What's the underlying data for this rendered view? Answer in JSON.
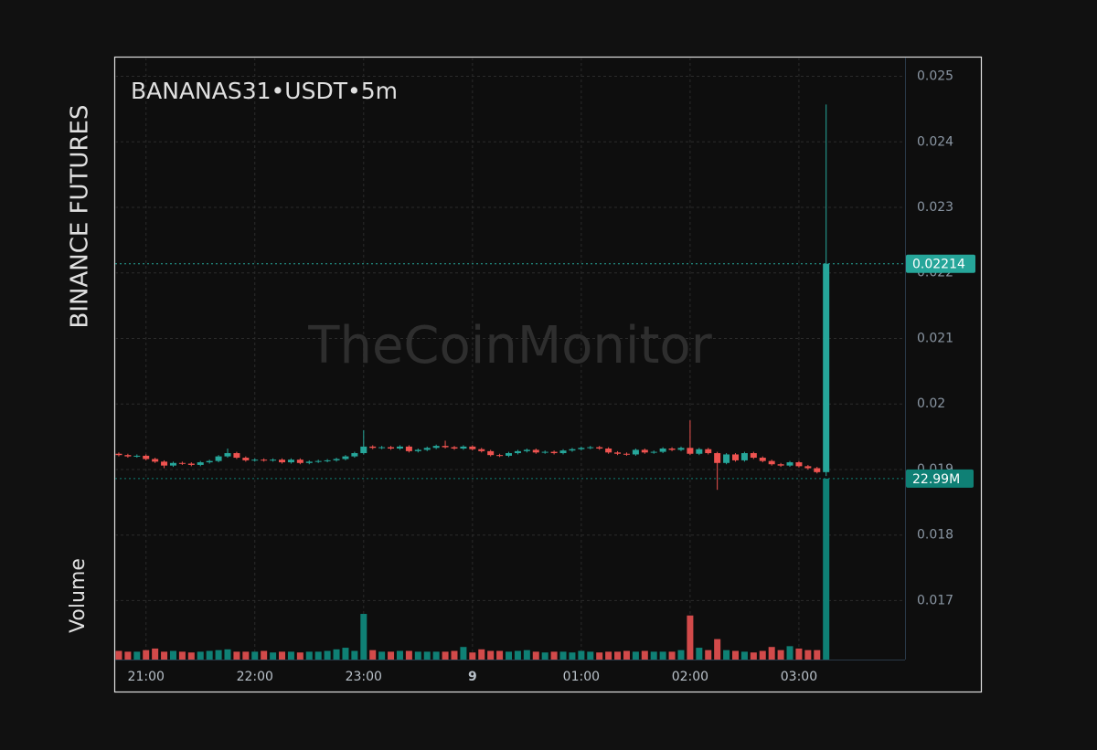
{
  "chart_data": {
    "type": "candlestick",
    "title": "BANANAS31•USDT•5m",
    "exchange": "BINANCE FUTURES",
    "volume_title": "Volume",
    "watermark": "TheCoinMonitor",
    "open": [
      0.01924,
      0.01922,
      0.0192,
      0.01921,
      0.01916,
      0.01912,
      0.01906,
      0.0191,
      0.01909,
      0.01907,
      0.01911,
      0.01913,
      0.0192,
      0.01925,
      0.01918,
      0.01914,
      0.01915,
      0.01914,
      0.01915,
      0.01911,
      0.01915,
      0.0191,
      0.01912,
      0.01913,
      0.01914,
      0.01916,
      0.0192,
      0.01925,
      0.01935,
      0.01933,
      0.01934,
      0.01932,
      0.01935,
      0.01928,
      0.0193,
      0.01933,
      0.01936,
      0.01934,
      0.01932,
      0.01935,
      0.01931,
      0.01928,
      0.01922,
      0.01921,
      0.01925,
      0.01928,
      0.0193,
      0.01926,
      0.01927,
      0.01925,
      0.01929,
      0.01931,
      0.01933,
      0.01934,
      0.01932,
      0.01926,
      0.01924,
      0.01923,
      0.0193,
      0.01926,
      0.01927,
      0.01932,
      0.0193,
      0.01933,
      0.01924,
      0.01931,
      0.01925,
      0.0191,
      0.01923,
      0.01914,
      0.01925,
      0.01918,
      0.01913,
      0.01908,
      0.01906,
      0.01911,
      0.01905,
      0.01902,
      0.01896
    ],
    "high": [
      0.01926,
      0.01924,
      0.01923,
      0.01923,
      0.01918,
      0.01914,
      0.01912,
      0.01912,
      0.01911,
      0.01913,
      0.01915,
      0.01922,
      0.01932,
      0.01927,
      0.0192,
      0.01917,
      0.01917,
      0.01917,
      0.01917,
      0.01917,
      0.01917,
      0.01914,
      0.01915,
      0.01916,
      0.01918,
      0.01922,
      0.01927,
      0.0196,
      0.01937,
      0.01936,
      0.01936,
      0.01937,
      0.01937,
      0.01932,
      0.01935,
      0.01938,
      0.01944,
      0.01936,
      0.01937,
      0.01937,
      0.01933,
      0.0193,
      0.01924,
      0.01927,
      0.0193,
      0.01932,
      0.01932,
      0.01929,
      0.01929,
      0.01931,
      0.01933,
      0.01935,
      0.01936,
      0.01936,
      0.01934,
      0.01928,
      0.01926,
      0.01932,
      0.01932,
      0.01929,
      0.01934,
      0.01934,
      0.01935,
      0.01975,
      0.01933,
      0.01933,
      0.01927,
      0.01925,
      0.01925,
      0.01927,
      0.01927,
      0.0192,
      0.01915,
      0.0191,
      0.01913,
      0.01913,
      0.01907,
      0.01904,
      0.02457
    ],
    "low": [
      0.0192,
      0.01918,
      0.01918,
      0.01914,
      0.0191,
      0.01902,
      0.01904,
      0.01907,
      0.01905,
      0.01905,
      0.01909,
      0.01911,
      0.01918,
      0.01916,
      0.01912,
      0.01912,
      0.01912,
      0.01912,
      0.01909,
      0.01909,
      0.01908,
      0.01908,
      0.0191,
      0.01911,
      0.01912,
      0.01914,
      0.01918,
      0.01923,
      0.01931,
      0.01931,
      0.0193,
      0.0193,
      0.01926,
      0.01926,
      0.01928,
      0.01931,
      0.01932,
      0.0193,
      0.0193,
      0.01929,
      0.01926,
      0.0192,
      0.01919,
      0.01919,
      0.01923,
      0.01926,
      0.01924,
      0.01924,
      0.01923,
      0.01923,
      0.01927,
      0.01929,
      0.01931,
      0.0193,
      0.01924,
      0.01922,
      0.01921,
      0.01921,
      0.01924,
      0.01924,
      0.01925,
      0.01928,
      0.01928,
      0.01922,
      0.01922,
      0.01923,
      0.01869,
      0.01908,
      0.01912,
      0.01912,
      0.01916,
      0.01911,
      0.01906,
      0.01904,
      0.01904,
      0.01903,
      0.019,
      0.01894,
      0.0189
    ],
    "close": [
      0.01922,
      0.0192,
      0.01921,
      0.01916,
      0.01912,
      0.01906,
      0.0191,
      0.01909,
      0.01907,
      0.01911,
      0.01913,
      0.0192,
      0.01925,
      0.01918,
      0.01914,
      0.01915,
      0.01914,
      0.01915,
      0.01911,
      0.01915,
      0.0191,
      0.01912,
      0.01913,
      0.01914,
      0.01916,
      0.0192,
      0.01925,
      0.01935,
      0.01933,
      0.01934,
      0.01932,
      0.01935,
      0.01928,
      0.0193,
      0.01933,
      0.01936,
      0.01934,
      0.01932,
      0.01935,
      0.01931,
      0.01928,
      0.01922,
      0.01921,
      0.01925,
      0.01928,
      0.0193,
      0.01926,
      0.01927,
      0.01925,
      0.01929,
      0.01931,
      0.01933,
      0.01934,
      0.01932,
      0.01926,
      0.01924,
      0.01923,
      0.0193,
      0.01926,
      0.01927,
      0.01932,
      0.0193,
      0.01933,
      0.01924,
      0.01931,
      0.01925,
      0.0191,
      0.01923,
      0.01914,
      0.01925,
      0.01918,
      0.01913,
      0.01908,
      0.01906,
      0.01911,
      0.01905,
      0.01902,
      0.01896,
      0.02214
    ],
    "volume": [
      1.1,
      1.0,
      1.0,
      1.2,
      1.4,
      1.0,
      1.1,
      1.0,
      0.9,
      1.0,
      1.1,
      1.2,
      1.3,
      1.0,
      1.0,
      1.0,
      1.1,
      0.9,
      1.0,
      1.0,
      0.9,
      1.0,
      1.0,
      1.1,
      1.3,
      1.5,
      1.1,
      5.8,
      1.2,
      1.0,
      1.0,
      1.1,
      1.1,
      1.0,
      1.0,
      1.0,
      1.0,
      1.1,
      1.6,
      0.9,
      1.3,
      1.1,
      1.1,
      1.0,
      1.1,
      1.2,
      1.0,
      0.9,
      1.0,
      1.0,
      0.9,
      1.1,
      1.0,
      0.9,
      1.0,
      1.0,
      1.1,
      1.0,
      1.1,
      1.0,
      1.0,
      1.0,
      1.2,
      5.6,
      1.5,
      1.2,
      2.6,
      1.2,
      1.1,
      1.0,
      0.9,
      1.1,
      1.6,
      1.2,
      1.7,
      1.4,
      1.2,
      1.2,
      22.99
    ],
    "volume_label": "22.99M",
    "up_color": "#26a69a",
    "down_color": "#ef5350",
    "volume_up_color": "#0f8075",
    "volume_down_color": "#d24a4a",
    "xlim": [
      -0.5,
      86.7
    ],
    "xticks": [
      {
        "value": 3,
        "label": "21:00"
      },
      {
        "value": 15,
        "label": "22:00"
      },
      {
        "value": 27,
        "label": "23:00"
      },
      {
        "value": 39,
        "label": "9"
      },
      {
        "value": 51,
        "label": "01:00"
      },
      {
        "value": 63,
        "label": "02:00"
      },
      {
        "value": 75,
        "label": "03:00"
      }
    ],
    "ylim": [
      0.0161,
      0.0253
    ],
    "yticks": [
      0.025,
      0.024,
      0.023,
      0.022,
      0.021,
      0.02,
      0.019,
      0.018,
      0.017
    ],
    "y2lim": [
      0,
      76.6
    ],
    "grid": true
  }
}
